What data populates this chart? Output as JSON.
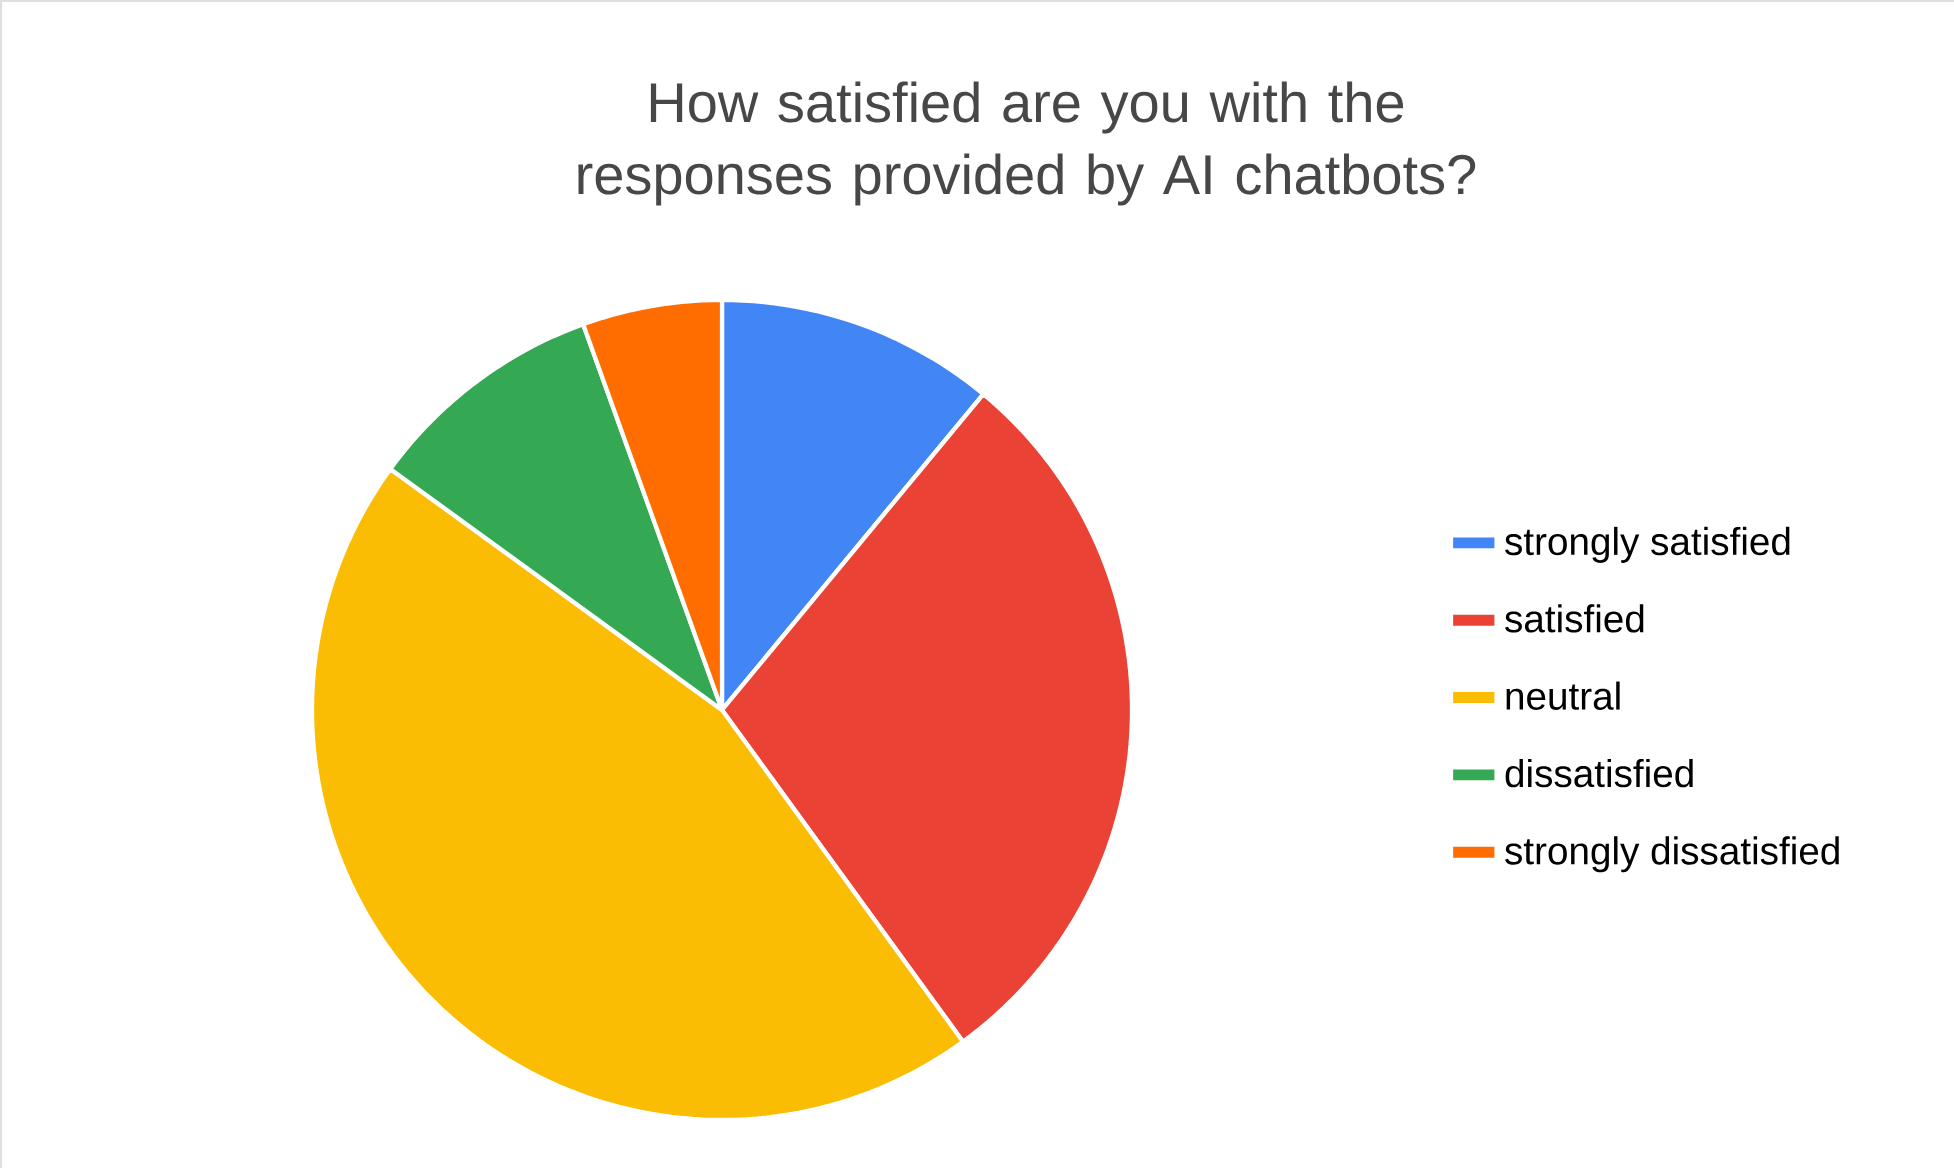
{
  "chart_data": {
    "type": "pie",
    "title": "How satisfied are you with the responses provided by AI chatbots?",
    "categories": [
      "strongly satisfied",
      "satisfied",
      "neutral",
      "dissatisfied",
      "strongly dissatisfied"
    ],
    "values": [
      11,
      29,
      45,
      9.5,
      5.5
    ],
    "colors": [
      "#4285f4",
      "#ea4335",
      "#fbbc04",
      "#34a853",
      "#ff6d01"
    ],
    "legend": "right"
  }
}
